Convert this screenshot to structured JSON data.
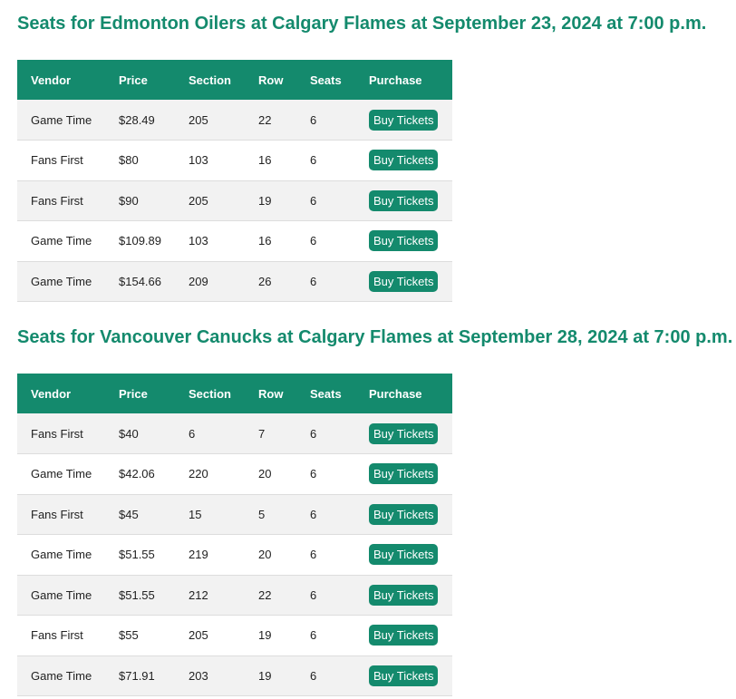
{
  "colors": {
    "accent": "#148a6d",
    "row_alt": "#f2f2f2",
    "header_text": "#ffffff"
  },
  "headers": [
    "Vendor",
    "Price",
    "Section",
    "Row",
    "Seats",
    "Purchase"
  ],
  "button_label": "Buy Tickets",
  "events": [
    {
      "title": "Seats for Edmonton Oilers at Calgary Flames at September 23, 2024 at 7:00 p.m.",
      "rows": [
        {
          "vendor": "Game Time",
          "price": "$28.49",
          "section": "205",
          "row": "22",
          "seats": "6"
        },
        {
          "vendor": "Fans First",
          "price": "$80",
          "section": "103",
          "row": "16",
          "seats": "6"
        },
        {
          "vendor": "Fans First",
          "price": "$90",
          "section": "205",
          "row": "19",
          "seats": "6"
        },
        {
          "vendor": "Game Time",
          "price": "$109.89",
          "section": "103",
          "row": "16",
          "seats": "6"
        },
        {
          "vendor": "Game Time",
          "price": "$154.66",
          "section": "209",
          "row": "26",
          "seats": "6"
        }
      ]
    },
    {
      "title": "Seats for Vancouver Canucks at Calgary Flames at September 28, 2024 at 7:00 p.m.",
      "rows": [
        {
          "vendor": "Fans First",
          "price": "$40",
          "section": "6",
          "row": "7",
          "seats": "6"
        },
        {
          "vendor": "Game Time",
          "price": "$42.06",
          "section": "220",
          "row": "20",
          "seats": "6"
        },
        {
          "vendor": "Fans First",
          "price": "$45",
          "section": "15",
          "row": "5",
          "seats": "6"
        },
        {
          "vendor": "Game Time",
          "price": "$51.55",
          "section": "219",
          "row": "20",
          "seats": "6"
        },
        {
          "vendor": "Game Time",
          "price": "$51.55",
          "section": "212",
          "row": "22",
          "seats": "6"
        },
        {
          "vendor": "Fans First",
          "price": "$55",
          "section": "205",
          "row": "19",
          "seats": "6"
        },
        {
          "vendor": "Game Time",
          "price": "$71.91",
          "section": "203",
          "row": "19",
          "seats": "6"
        }
      ]
    }
  ]
}
